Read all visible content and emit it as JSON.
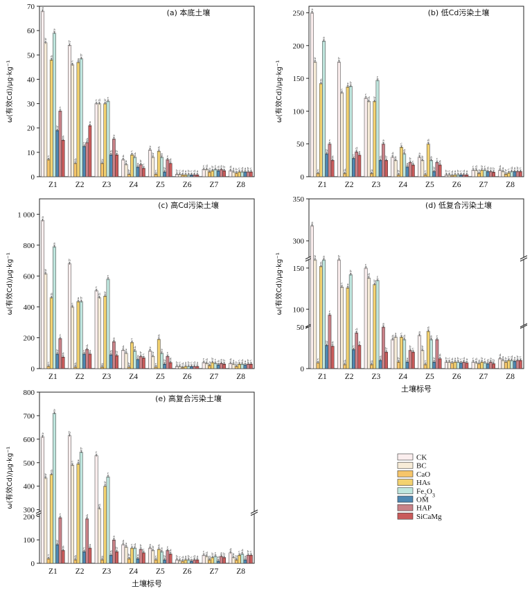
{
  "series_colors": [
    "#fbeeee",
    "#f7ecd8",
    "#f6c56a",
    "#f3d270",
    "#bfe6de",
    "#4f88b2",
    "#c98288",
    "#c95b5b"
  ],
  "legend": [
    "CK",
    "BC",
    "CaO",
    "HAs",
    "Fe2O3",
    "OM",
    "HAP",
    "SiCaMg"
  ],
  "chart_data": [
    {
      "type": "bar",
      "title": "(a) 本底土壤",
      "ylabel": "ω(有效Cd)/μg·kg⁻¹",
      "xlabel": "",
      "categories": [
        "Z1",
        "Z2",
        "Z3",
        "Z4",
        "Z5",
        "Z6",
        "Z7",
        "Z8"
      ],
      "ylim": [
        0,
        70
      ],
      "yticks": [
        0,
        10,
        20,
        30,
        40,
        50,
        60,
        70
      ],
      "series": [
        {
          "name": "CK",
          "values": [
            68,
            54,
            30,
            7,
            11,
            1,
            3,
            2.5
          ]
        },
        {
          "name": "BC",
          "values": [
            55,
            46,
            30,
            5,
            8,
            1,
            3,
            2
          ]
        },
        {
          "name": "CaO",
          "values": [
            7,
            5.5,
            5.5,
            1,
            1,
            0.8,
            2,
            1.5
          ]
        },
        {
          "name": "HAs",
          "values": [
            48,
            47,
            30,
            9,
            10.5,
            0.8,
            2.5,
            2
          ]
        },
        {
          "name": "Fe2O3",
          "values": [
            59,
            48.5,
            31,
            8,
            8,
            0.8,
            3,
            2
          ]
        },
        {
          "name": "OM",
          "values": [
            19,
            12.5,
            9,
            4,
            2,
            0.8,
            2.5,
            2
          ]
        },
        {
          "name": "HAP",
          "values": [
            27,
            14,
            15.5,
            5,
            7,
            0.8,
            3,
            2
          ]
        },
        {
          "name": "SiCaMg",
          "values": [
            15,
            21,
            9,
            3.5,
            5.5,
            0.8,
            2.5,
            2
          ]
        }
      ]
    },
    {
      "type": "bar",
      "title": "(b) 低Cd污染土壤",
      "ylabel": "ω(有效Cd)/μg·kg⁻¹",
      "xlabel": "",
      "categories": [
        "Z1",
        "Z2",
        "Z3",
        "Z4",
        "Z5",
        "Z6",
        "Z7",
        "Z8"
      ],
      "ylim": [
        0,
        260
      ],
      "yticks": [
        0,
        50,
        100,
        150,
        200,
        250
      ],
      "series": [
        {
          "name": "CK",
          "values": [
            250,
            175,
            120,
            30,
            30,
            3,
            10,
            10
          ]
        },
        {
          "name": "BC",
          "values": [
            175,
            128,
            115,
            25,
            25,
            3,
            10,
            8
          ]
        },
        {
          "name": "CaO",
          "values": [
            5,
            5,
            5,
            3,
            3,
            2,
            5,
            4
          ]
        },
        {
          "name": "HAs",
          "values": [
            142,
            137,
            115,
            45,
            50,
            3,
            10,
            6
          ]
        },
        {
          "name": "Fe2O3",
          "values": [
            207,
            138,
            147,
            35,
            25,
            3,
            10,
            8
          ]
        },
        {
          "name": "OM",
          "values": [
            35,
            28,
            25,
            15,
            8,
            3,
            8,
            8
          ]
        },
        {
          "name": "HAP",
          "values": [
            50,
            38,
            50,
            22,
            22,
            3,
            8,
            8
          ]
        },
        {
          "name": "SiCaMg",
          "values": [
            25,
            33,
            25,
            18,
            18,
            3,
            7,
            8
          ]
        }
      ]
    },
    {
      "type": "bar",
      "title": "(c) 高Cd污染土壤",
      "ylabel": "ω(有效Cd)/μg·kg⁻¹",
      "xlabel": "",
      "categories": [
        "Z1",
        "Z2",
        "Z3",
        "Z4",
        "Z5",
        "Z6",
        "Z7",
        "Z8"
      ],
      "ylim": [
        0,
        1100
      ],
      "yticks": [
        0,
        200,
        400,
        600,
        800,
        1000
      ],
      "series": [
        {
          "name": "CK",
          "values": [
            960,
            680,
            505,
            120,
            115,
            15,
            40,
            35
          ]
        },
        {
          "name": "BC",
          "values": [
            615,
            400,
            460,
            100,
            80,
            15,
            35,
            30
          ]
        },
        {
          "name": "CaO",
          "values": [
            15,
            10,
            10,
            10,
            10,
            8,
            20,
            15
          ]
        },
        {
          "name": "HAs",
          "values": [
            460,
            435,
            470,
            170,
            190,
            15,
            40,
            30
          ]
        },
        {
          "name": "Fe2O3",
          "values": [
            790,
            435,
            580,
            115,
            100,
            15,
            35,
            30
          ]
        },
        {
          "name": "OM",
          "values": [
            95,
            95,
            90,
            60,
            30,
            15,
            25,
            25
          ]
        },
        {
          "name": "HAP",
          "values": [
            195,
            125,
            175,
            80,
            80,
            15,
            35,
            30
          ]
        },
        {
          "name": "SiCaMg",
          "values": [
            75,
            95,
            85,
            70,
            40,
            15,
            30,
            30
          ]
        }
      ]
    },
    {
      "type": "bar",
      "title": "(d) 低复合污染土壤",
      "ylabel": "ω(有效Cd)/μg·kg⁻¹",
      "xlabel": "土壤标号",
      "categories": [
        "Z1",
        "Z2",
        "Z3",
        "Z4",
        "Z5",
        "Z6",
        "Z7",
        "Z8"
      ],
      "broken_axis": [
        [
          0,
          50
        ],
        [
          80,
          160
        ],
        [
          280,
          350
        ]
      ],
      "yticks": [
        0,
        50,
        100,
        150,
        300,
        350
      ],
      "series": [
        {
          "name": "CK",
          "values": [
            318,
            170,
            150,
            35,
            40,
            8,
            8,
            12
          ]
        },
        {
          "name": "BC",
          "values": [
            162,
            127,
            138,
            38,
            22,
            8,
            7,
            10
          ]
        },
        {
          "name": "CaO",
          "values": [
            7,
            5,
            5,
            8,
            5,
            7,
            6,
            8
          ]
        },
        {
          "name": "HAs",
          "values": [
            152,
            126,
            130,
            38,
            45,
            8,
            8,
            10
          ]
        },
        {
          "name": "Fe2O3",
          "values": [
            178,
            142,
            135,
            35,
            35,
            8,
            7,
            10
          ]
        },
        {
          "name": "OM",
          "values": [
            28,
            23,
            10,
            8,
            8,
            7,
            6,
            9
          ]
        },
        {
          "name": "HAP",
          "values": [
            93,
            43,
            52,
            22,
            35,
            8,
            8,
            10
          ]
        },
        {
          "name": "SiCaMg",
          "values": [
            27,
            28,
            20,
            20,
            12,
            7,
            6,
            10
          ]
        }
      ]
    },
    {
      "type": "bar",
      "title": "(e) 高复合污染土壤",
      "ylabel": "ω(有效Cd)/μg·kg⁻¹",
      "xlabel": "土壤标号",
      "categories": [
        "Z1",
        "Z2",
        "Z3",
        "Z4",
        "Z5",
        "Z6",
        "Z7",
        "Z8"
      ],
      "broken_axis": [
        [
          0,
          210
        ],
        [
          290,
          800
        ]
      ],
      "yticks": [
        0,
        100,
        200,
        300,
        400,
        500,
        600,
        700,
        800
      ],
      "series": [
        {
          "name": "CK",
          "values": [
            610,
            615,
            530,
            80,
            65,
            15,
            35,
            45
          ]
        },
        {
          "name": "BC",
          "values": [
            435,
            490,
            305,
            70,
            55,
            12,
            30,
            25
          ]
        },
        {
          "name": "CaO",
          "values": [
            20,
            15,
            15,
            20,
            15,
            10,
            15,
            15
          ]
        },
        {
          "name": "HAs",
          "values": [
            450,
            495,
            400,
            65,
            60,
            15,
            25,
            35
          ]
        },
        {
          "name": "Fe2O3",
          "values": [
            710,
            545,
            440,
            65,
            50,
            15,
            30,
            40
          ]
        },
        {
          "name": "OM",
          "values": [
            80,
            50,
            35,
            20,
            15,
            10,
            10,
            15
          ]
        },
        {
          "name": "HAP",
          "values": [
            195,
            190,
            100,
            60,
            55,
            15,
            30,
            35
          ]
        },
        {
          "name": "SiCaMg",
          "values": [
            55,
            65,
            50,
            45,
            40,
            15,
            25,
            35
          ]
        }
      ]
    }
  ]
}
